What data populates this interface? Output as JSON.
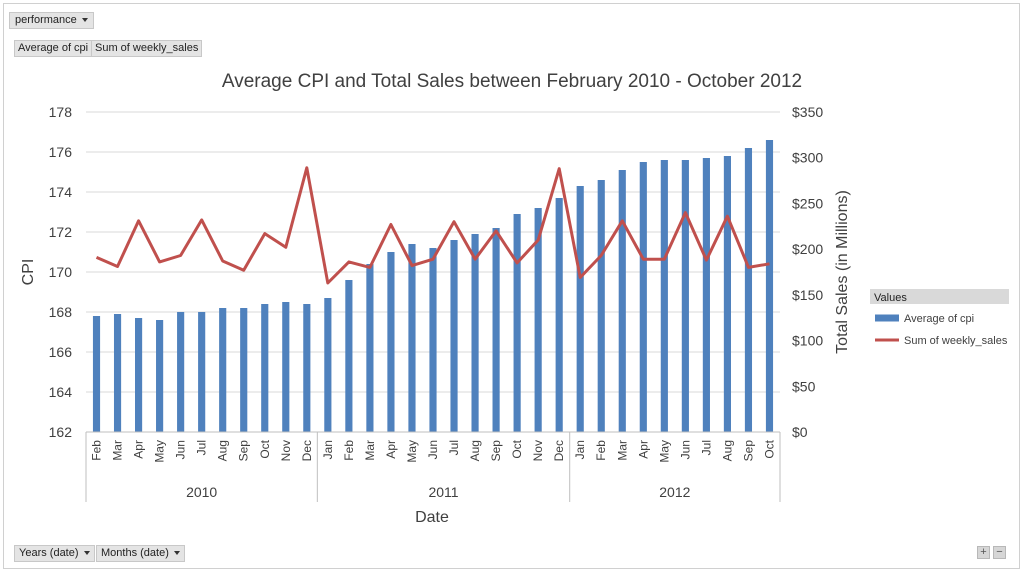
{
  "filter_button": {
    "label": "performance",
    "icon": "dropdown-caret-icon"
  },
  "value_buttons": [
    {
      "label": "Average of cpi"
    },
    {
      "label": "Sum of weekly_sales"
    }
  ],
  "axis_buttons": [
    {
      "label": "Years (date)",
      "icon": "dropdown-caret-icon"
    },
    {
      "label": "Months (date)",
      "icon": "dropdown-caret-icon"
    }
  ],
  "zoom_buttons": {
    "plus": "+",
    "minus": "−"
  },
  "legend": {
    "title": "Values",
    "entries": [
      {
        "label": "Average of cpi",
        "color": "#4f81bd"
      },
      {
        "label": "Sum of weekly_sales",
        "color": "#c0504d"
      }
    ]
  },
  "chart_data": {
    "type": "bar+line",
    "title": "Average CPI and Total Sales between February 2010 - October 2012",
    "xlabel": "Date",
    "ylabel": "CPI",
    "y2label": "Total Sales (in Millions)",
    "ylim": [
      162,
      178
    ],
    "yticks": [
      "162",
      "164",
      "166",
      "168",
      "170",
      "172",
      "174",
      "176",
      "178"
    ],
    "y2lim": [
      0,
      350
    ],
    "y2ticks": [
      "$0",
      "$50",
      "$100",
      "$150",
      "$200",
      "$250",
      "$300",
      "$350"
    ],
    "grid": true,
    "legend_position": "right",
    "years": [
      {
        "label": "2010",
        "months": [
          "Feb",
          "Mar",
          "Apr",
          "May",
          "Jun",
          "Jul",
          "Aug",
          "Sep",
          "Oct",
          "Nov",
          "Dec"
        ]
      },
      {
        "label": "2011",
        "months": [
          "Jan",
          "Feb",
          "Mar",
          "Apr",
          "May",
          "Jun",
          "Jul",
          "Aug",
          "Sep",
          "Oct",
          "Nov",
          "Dec"
        ]
      },
      {
        "label": "2012",
        "months": [
          "Jan",
          "Feb",
          "Mar",
          "Apr",
          "May",
          "Jun",
          "Jul",
          "Aug",
          "Sep",
          "Oct"
        ]
      }
    ],
    "series": [
      {
        "name": "Average of cpi",
        "kind": "bar",
        "axis": "left",
        "color": "#4f81bd",
        "values": [
          167.8,
          167.9,
          167.7,
          167.6,
          168.0,
          168.0,
          168.2,
          168.2,
          168.4,
          168.5,
          168.4,
          168.7,
          169.6,
          170.4,
          171.0,
          171.4,
          171.2,
          171.6,
          171.9,
          172.2,
          172.9,
          173.2,
          173.7,
          174.3,
          174.6,
          175.1,
          175.5,
          175.6,
          175.6,
          175.7,
          175.8,
          176.2,
          176.6
        ]
      },
      {
        "name": "Sum of weekly_sales",
        "kind": "line",
        "axis": "right",
        "color": "#c0504d",
        "values": [
          191,
          181,
          231,
          186,
          193,
          232,
          187,
          177,
          217,
          202,
          289,
          163,
          186,
          180,
          227,
          182,
          189,
          230,
          189,
          220,
          185,
          210,
          288,
          169,
          193,
          231,
          189,
          189,
          240,
          188,
          236,
          180,
          184
        ]
      }
    ]
  }
}
